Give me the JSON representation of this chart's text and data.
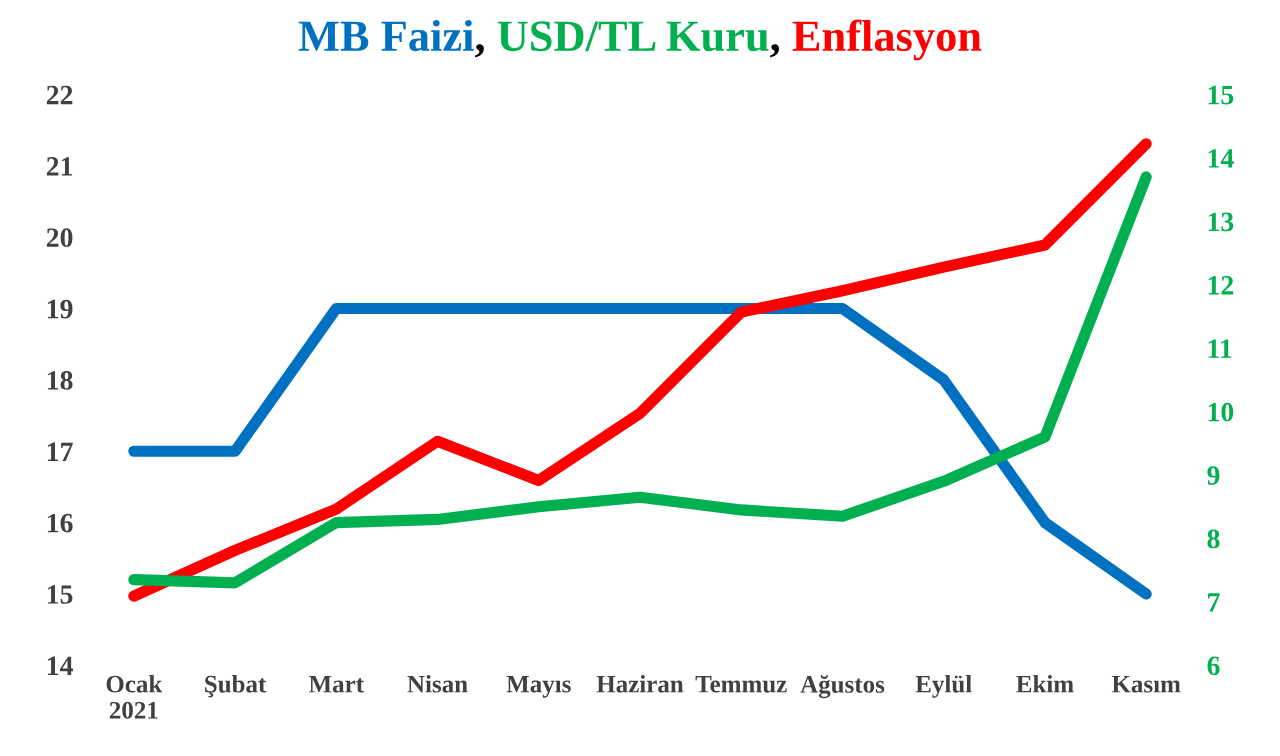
{
  "chart_data": {
    "type": "line",
    "title": "MB Faizi, USD/TL Kuru, Enflasyon",
    "categories": [
      "Ocak\n2021",
      "Şubat",
      "Mart",
      "Nisan",
      "Mayıs",
      "Haziran",
      "Temmuz",
      "Ağustos",
      "Eylül",
      "Ekim",
      "Kasım"
    ],
    "series": [
      {
        "color": "#0070c0",
        "values": [
          17,
          17,
          19,
          19,
          19,
          19,
          19,
          19,
          18,
          16,
          15
        ]
      },
      {
        "color": "#00b050",
        "axis": "y2",
        "values": [
          7.35,
          7.3,
          8.25,
          8.3,
          8.5,
          8.65,
          8.45,
          8.35,
          8.9,
          9.6,
          13.7
        ]
      },
      {
        "color": "#ff0000",
        "values": [
          14.97,
          15.61,
          16.19,
          17.14,
          16.59,
          17.53,
          18.95,
          19.25,
          19.58,
          19.89,
          21.31
        ]
      }
    ],
    "ylim": [
      14,
      22
    ],
    "yticks": [
      14,
      15,
      16,
      17,
      18,
      19,
      20,
      21,
      22
    ],
    "y2lim": [
      6,
      15
    ],
    "y2ticks": [
      6,
      7,
      8,
      9,
      10,
      11,
      12,
      13,
      14,
      15
    ],
    "grid": false,
    "marker": "none",
    "line_style": "solid"
  }
}
